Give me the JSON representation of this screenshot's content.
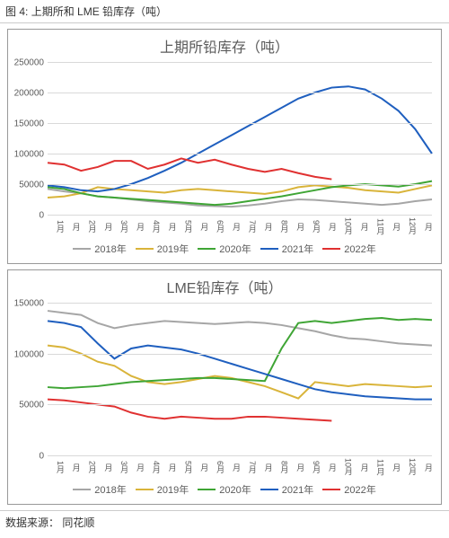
{
  "header": {
    "label": "图 4:",
    "title": "上期所和 LME 铅库存（吨）"
  },
  "footer": {
    "label": "数据来源：",
    "source": "同花顺"
  },
  "colors": {
    "grid": "#d9d9d9",
    "axis_text": "#5b5b5b",
    "panel_border": "#999999",
    "series": {
      "2018": "#a6a6a6",
      "2019": "#d9b43a",
      "2020": "#3fa535",
      "2021": "#1f5fbf",
      "2022": "#e03131"
    }
  },
  "legend_labels": {
    "2018": "2018年",
    "2019": "2019年",
    "2020": "2020年",
    "2021": "2021年",
    "2022": "2022年"
  },
  "x_ticks": [
    "1月",
    "月",
    "2月",
    "月",
    "3月",
    "月",
    "4月",
    "月",
    "5月",
    "月",
    "6月",
    "月",
    "7月",
    "月",
    "8月",
    "月",
    "9月",
    "月",
    "10月",
    "月",
    "11月",
    "月",
    "12月",
    "月"
  ],
  "chart1": {
    "title": "上期所铅库存（吨）",
    "type": "line",
    "ylim": [
      0,
      250000
    ],
    "ytick_step": 50000,
    "line_width": 2,
    "title_fontsize": 16,
    "label_fontsize": 10,
    "background_color": "#ffffff",
    "n_points": 24,
    "series": {
      "2018": [
        42000,
        38000,
        35000,
        30000,
        28000,
        25000,
        22000,
        20000,
        18000,
        15000,
        14000,
        13000,
        15000,
        18000,
        22000,
        25000,
        24000,
        22000,
        20000,
        18000,
        16000,
        18000,
        22000,
        25000
      ],
      "2019": [
        28000,
        30000,
        35000,
        45000,
        42000,
        40000,
        38000,
        36000,
        40000,
        42000,
        40000,
        38000,
        36000,
        34000,
        38000,
        45000,
        48000,
        46000,
        44000,
        40000,
        38000,
        36000,
        42000,
        48000
      ],
      "2020": [
        45000,
        42000,
        35000,
        30000,
        28000,
        26000,
        24000,
        22000,
        20000,
        18000,
        16000,
        18000,
        22000,
        26000,
        30000,
        35000,
        40000,
        45000,
        48000,
        50000,
        48000,
        46000,
        50000,
        55000
      ],
      "2021": [
        48000,
        45000,
        40000,
        38000,
        42000,
        50000,
        60000,
        72000,
        85000,
        100000,
        115000,
        130000,
        145000,
        160000,
        175000,
        190000,
        200000,
        208000,
        210000,
        205000,
        190000,
        170000,
        140000,
        100000
      ],
      "2022": [
        85000,
        82000,
        72000,
        78000,
        88000,
        88000,
        75000,
        82000,
        92000,
        85000,
        90000,
        82000,
        75000,
        70000,
        75000,
        68000,
        62000,
        58000
      ]
    }
  },
  "chart2": {
    "title": "LME铅库存（吨）",
    "type": "line",
    "ylim": [
      0,
      150000
    ],
    "ytick_step": 50000,
    "line_width": 2,
    "title_fontsize": 16,
    "label_fontsize": 10,
    "background_color": "#ffffff",
    "n_points": 24,
    "series": {
      "2018": [
        142000,
        140000,
        138000,
        130000,
        125000,
        128000,
        130000,
        132000,
        131000,
        130000,
        129000,
        130000,
        131000,
        130000,
        128000,
        125000,
        122000,
        118000,
        115000,
        114000,
        112000,
        110000,
        109000,
        108000
      ],
      "2019": [
        108000,
        106000,
        100000,
        92000,
        88000,
        78000,
        72000,
        70000,
        72000,
        75000,
        78000,
        76000,
        72000,
        68000,
        62000,
        56000,
        72000,
        70000,
        68000,
        70000,
        69000,
        68000,
        67000,
        68000
      ],
      "2020": [
        67000,
        66000,
        67000,
        68000,
        70000,
        72000,
        73000,
        74000,
        75000,
        76000,
        76000,
        75000,
        74000,
        73000,
        105000,
        130000,
        132000,
        130000,
        132000,
        134000,
        135000,
        133000,
        134000,
        133000
      ],
      "2021": [
        132000,
        130000,
        126000,
        110000,
        95000,
        105000,
        108000,
        106000,
        104000,
        100000,
        95000,
        90000,
        85000,
        80000,
        75000,
        70000,
        65000,
        62000,
        60000,
        58000,
        57000,
        56000,
        55000,
        55000
      ],
      "2022": [
        55000,
        54000,
        52000,
        50000,
        48000,
        42000,
        38000,
        36000,
        38000,
        37000,
        36000,
        36000,
        38000,
        38000,
        37000,
        36000,
        35000,
        34000
      ]
    }
  }
}
